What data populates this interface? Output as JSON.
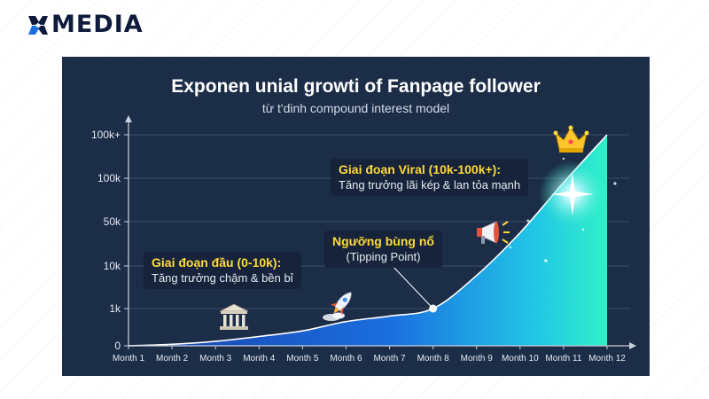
{
  "brand": {
    "name": "MEDIA"
  },
  "colors": {
    "panel": "#1c2d48",
    "curve": "#ffffff",
    "fill_top": "#2ff0c8",
    "fill_bottom": "#1a5fd6",
    "highlight": "#ffd93a"
  },
  "chart_data": {
    "type": "area",
    "title": "Exponen unial growti of Fanpage follower",
    "subtitle": "từ t'dinh compound interest model",
    "x": [
      "Month 1",
      "Month 2",
      "Month 3",
      "Month 4",
      "Month 5",
      "Month 6",
      "Month 7",
      "Month 8",
      "Month 9",
      "Month 10",
      "Month 11",
      "Month 12"
    ],
    "y_tick_labels": [
      "0",
      "1k",
      "10k",
      "50k",
      "100k",
      "100k+"
    ],
    "y_scale": "ordinal-tick (0, 1k, 10k, 50k, 100k, 100k+ evenly spaced)",
    "series": [
      {
        "values": [
          0,
          40,
          120,
          250,
          400,
          650,
          800,
          1000,
          8000,
          40000,
          95000,
          150000
        ]
      }
    ],
    "grid": true,
    "annotations": [
      {
        "title": "Giai đoạn đầu (0-10k):",
        "text": "Tăng trưởng chậm & bền bỉ",
        "icon": "bank-icon"
      },
      {
        "title": "Ngưỡng bùng nổ",
        "text": "(Tipping Point)",
        "at": "Month 8"
      },
      {
        "title": "Giai đoạn Viral (10k-100k+):",
        "text": "Tăng trưởng lãi kép & lan tỏa mạnh",
        "icon": "megaphone-icon"
      }
    ],
    "icons": [
      "bank-icon",
      "rocket-icon",
      "megaphone-icon",
      "crown-icon"
    ]
  }
}
